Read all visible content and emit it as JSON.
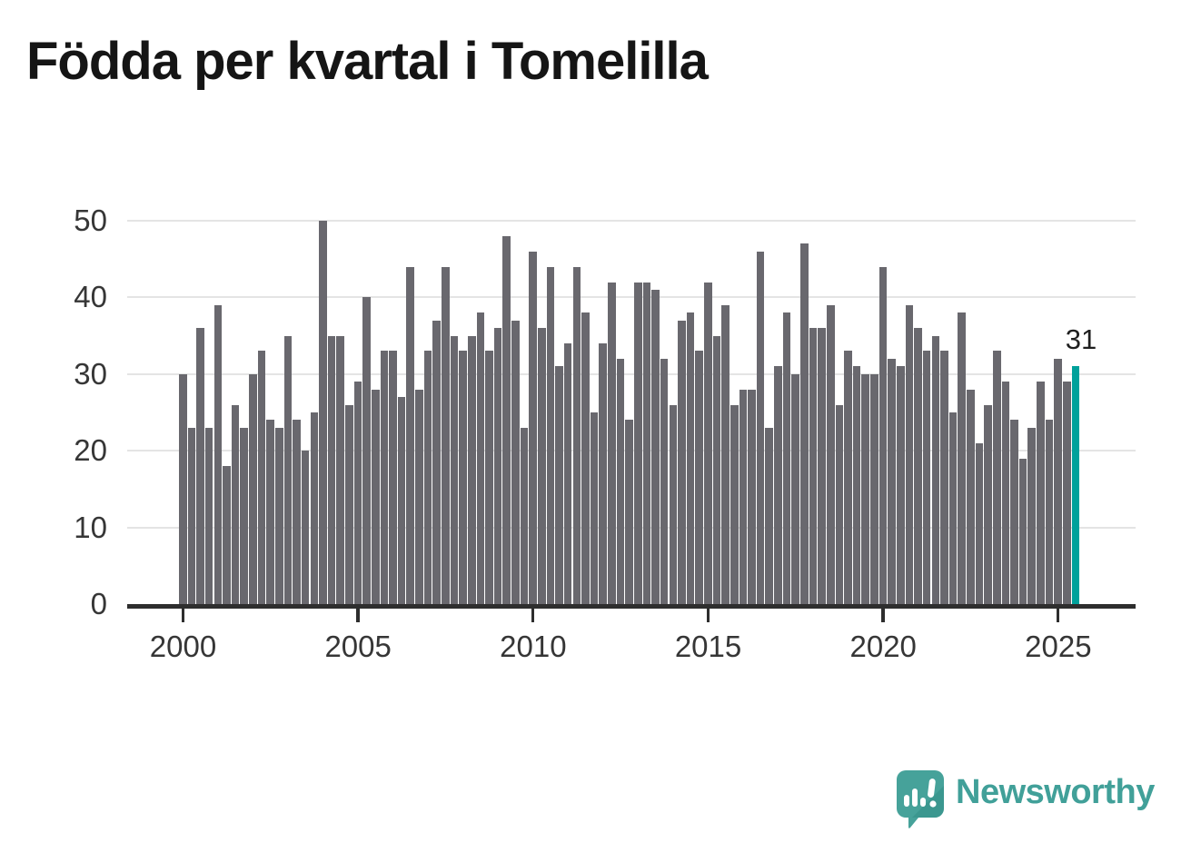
{
  "title": "Födda per kvartal i Tomelilla",
  "branding": {
    "name": "Newsworthy",
    "logo_icon": "speech-bubble-bar-chart-icon"
  },
  "annotation": {
    "latest_value_label": "31"
  },
  "chart_data": {
    "type": "bar",
    "title": "Födda per kvartal i Tomelilla",
    "frequency": "quarterly",
    "x_start": {
      "year": 2000,
      "quarter": 1
    },
    "x_end": {
      "year": 2025,
      "quarter": 3
    },
    "x_tick_labels": [
      "2000",
      "2005",
      "2010",
      "2015",
      "2020",
      "2025"
    ],
    "x_tick_indices": [
      0,
      20,
      40,
      60,
      80,
      100
    ],
    "y_ticks": [
      0,
      10,
      20,
      30,
      40,
      50
    ],
    "ylim": [
      0,
      50
    ],
    "grid": true,
    "legend": false,
    "xlabel": "",
    "ylabel": "",
    "series": [
      {
        "name": "Födda",
        "values": [
          30,
          23,
          36,
          23,
          39,
          18,
          26,
          23,
          30,
          33,
          24,
          23,
          35,
          24,
          20,
          25,
          50,
          35,
          35,
          26,
          29,
          40,
          28,
          33,
          33,
          27,
          44,
          28,
          33,
          37,
          44,
          35,
          33,
          35,
          38,
          33,
          36,
          48,
          37,
          23,
          46,
          36,
          44,
          31,
          34,
          44,
          38,
          25,
          34,
          42,
          32,
          24,
          42,
          42,
          41,
          32,
          26,
          37,
          38,
          33,
          42,
          35,
          39,
          26,
          28,
          28,
          46,
          23,
          31,
          38,
          30,
          47,
          36,
          36,
          39,
          26,
          33,
          31,
          30,
          30,
          44,
          32,
          31,
          39,
          36,
          33,
          35,
          33,
          25,
          38,
          28,
          21,
          26,
          33,
          29,
          24,
          19,
          23,
          29,
          24,
          32,
          29,
          31
        ]
      }
    ],
    "highlight": {
      "index": 102,
      "value": 31,
      "label": "31"
    },
    "colors": {
      "bar": "#69686E",
      "highlight": "#00A19B",
      "gridline": "#e4e4e4",
      "axis_line": "#2e2e2e",
      "axis_text": "#363636",
      "title_text": "#151515",
      "brand_teal": "#41A099"
    }
  }
}
